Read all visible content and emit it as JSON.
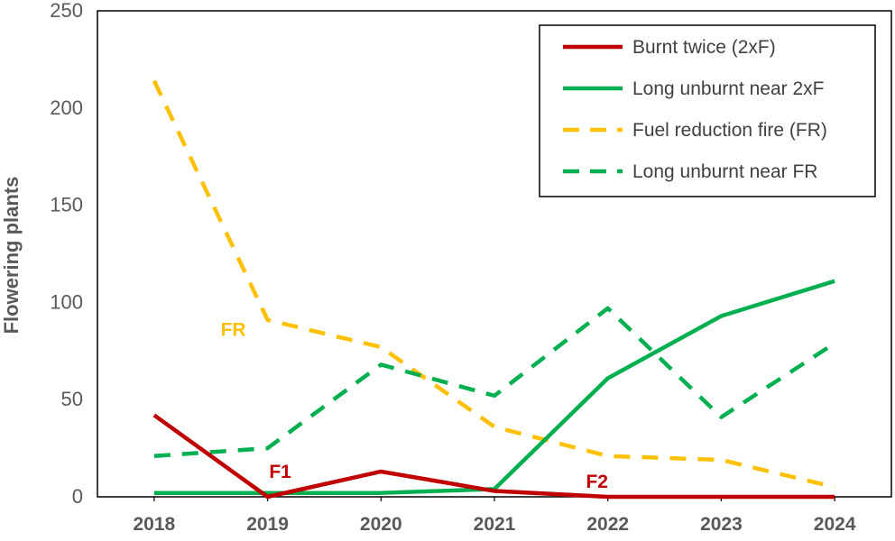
{
  "chart_data": {
    "type": "line",
    "title": "",
    "xlabel": "",
    "ylabel": "Flowering plants",
    "x": [
      "2018",
      "2019",
      "2020",
      "2021",
      "2022",
      "2023",
      "2024"
    ],
    "ylim": [
      0,
      250
    ],
    "yticks": [
      "0",
      "50",
      "100",
      "150",
      "200",
      "250"
    ],
    "grid": false,
    "legend_position": "top-right",
    "series": [
      {
        "name": "Burnt twice (2xF)",
        "values": [
          42,
          0,
          13,
          3,
          0,
          0,
          0
        ],
        "color": "#C00000",
        "style": "solid"
      },
      {
        "name": "Long unburnt near 2xF",
        "values": [
          2,
          2,
          2,
          4,
          61,
          93,
          111
        ],
        "color": "#00B050",
        "style": "solid"
      },
      {
        "name": "Fuel reduction fire (FR)",
        "values": [
          214,
          91,
          77,
          36,
          21,
          19,
          5
        ],
        "color": "#FFC000",
        "style": "dashed"
      },
      {
        "name": "Long unburnt near FR",
        "values": [
          21,
          25,
          68,
          52,
          97,
          41,
          79
        ],
        "color": "#00B050",
        "style": "dashed"
      }
    ],
    "annotations": [
      {
        "text": "FR",
        "x": "2019",
        "y": 86,
        "color": "#FFC000"
      },
      {
        "text": "F1",
        "x": "2019",
        "y": 13,
        "color": "#C00000"
      },
      {
        "text": "F2",
        "x": "2022",
        "y": 8,
        "color": "#C00000"
      }
    ]
  }
}
